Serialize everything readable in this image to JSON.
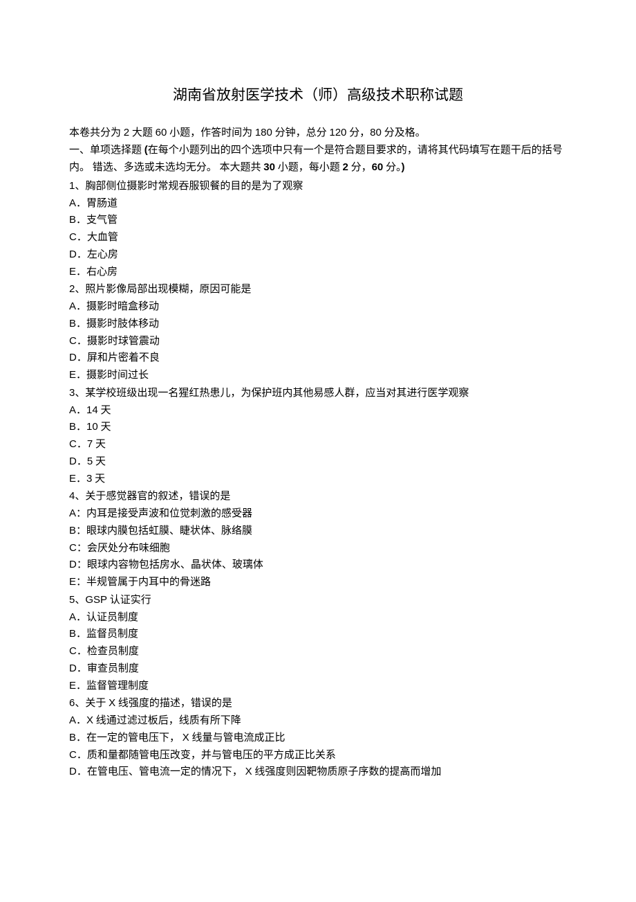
{
  "title": "湖南省放射医学技术（师）高级技术职称试题",
  "instructions": {
    "line1_parts": {
      "p1": "本卷共分为 ",
      "p2": "2",
      "p3": " 大题 ",
      "p4": "60",
      "p5": " 小题，作答时间为  ",
      "p6": "180",
      "p7": " 分钟，总分  ",
      "p8": "120",
      "p9": " 分，",
      "p10": "80",
      "p11": " 分及格。"
    },
    "line2_parts": {
      "p1": "一、单项选择题 ",
      "p2": "(",
      "p3": "在每个小题列出的四个选项中只有一个是符合题目要求的，请将其代码填写在题干后的括号内。  错选、多选或未选均无分。 本大题共  ",
      "p4": "30",
      "p5": " 小题，每小题 ",
      "p6": "2",
      "p7": " 分，",
      "p8": "60",
      "p9": " 分。",
      "p10": ")"
    }
  },
  "questions": [
    {
      "num": "1",
      "text": "、胸部侧位摄影时常规吞服钡餐的目的是为了观察",
      "options": [
        {
          "label": "A",
          "text": "．胃肠道"
        },
        {
          "label": "B",
          "text": "．支气管"
        },
        {
          "label": "C",
          "text": "．大血管"
        },
        {
          "label": "D",
          "text": "．左心房"
        },
        {
          "label": "E",
          "text": "．右心房"
        }
      ]
    },
    {
      "num": "2",
      "text": "、照片影像局部出现模糊，原因可能是",
      "options": [
        {
          "label": "A",
          "text": "．摄影时暗盒移动"
        },
        {
          "label": "B",
          "text": "．摄影时肢体移动"
        },
        {
          "label": "C",
          "text": "．摄影时球管震动"
        },
        {
          "label": "D",
          "text": "．屏和片密着不良"
        },
        {
          "label": "E",
          "text": "．摄影时间过长"
        }
      ]
    },
    {
      "num": "3",
      "text": "、某学校班级出现一名猩红热患儿，为保护班内其他易感人群，应当对其进行医学观察",
      "options": [
        {
          "label": "A",
          "text": "．",
          "after": "14",
          "suffix": " 天"
        },
        {
          "label": "B",
          "text": "．",
          "after": "10",
          "suffix": " 天"
        },
        {
          "label": "C",
          "text": "．",
          "after": "7",
          "suffix": " 天"
        },
        {
          "label": "D",
          "text": "．",
          "after": "5",
          "suffix": " 天"
        },
        {
          "label": "E",
          "text": "．",
          "after": "3",
          "suffix": " 天"
        }
      ]
    },
    {
      "num": "4",
      "text": "、关于感觉器官的叙述，错误的是",
      "options": [
        {
          "label": "A",
          "text": "：内耳是接受声波和位觉刺激的感受器"
        },
        {
          "label": "B",
          "text": "：眼球内膜包括虹膜、睫状体、脉络膜"
        },
        {
          "label": "C",
          "text": "：会厌处分布味细胞"
        },
        {
          "label": "D",
          "text": "：眼球内容物包括房水、晶状体、玻璃体"
        },
        {
          "label": "E",
          "text": "：半规管属于内耳中的骨迷路"
        }
      ]
    },
    {
      "num": "5",
      "text_pre": "、",
      "text_alpha": "GSP",
      "text_post": " 认证实行",
      "options": [
        {
          "label": "A",
          "text": "．认证员制度"
        },
        {
          "label": "B",
          "text": "．监督员制度"
        },
        {
          "label": "C",
          "text": "．检查员制度"
        },
        {
          "label": "D",
          "text": "．审查员制度"
        },
        {
          "label": "E",
          "text": "．监督管理制度"
        }
      ]
    },
    {
      "num": "6",
      "text_segments": [
        {
          "type": "cn",
          "v": "、关于 "
        },
        {
          "type": "en",
          "v": "X"
        },
        {
          "type": "cn",
          "v": " 线强度的描述，错误的是"
        }
      ],
      "options_complex": [
        {
          "segs": [
            {
              "type": "en",
              "v": "A"
            },
            {
              "type": "cn",
              "v": "．"
            },
            {
              "type": "en",
              "v": "X"
            },
            {
              "type": "cn",
              "v": " 线通过滤过板后，线质有所下降"
            }
          ]
        },
        {
          "segs": [
            {
              "type": "en",
              "v": "B"
            },
            {
              "type": "cn",
              "v": "．在一定的管电压下，  "
            },
            {
              "type": "en",
              "v": "X"
            },
            {
              "type": "cn",
              "v": " 线量与管电流成正比"
            }
          ]
        },
        {
          "segs": [
            {
              "type": "en",
              "v": "C"
            },
            {
              "type": "cn",
              "v": "．质和量都随管电压改变，并与管电压的平方成正比关系"
            }
          ]
        },
        {
          "segs": [
            {
              "type": "en",
              "v": "D"
            },
            {
              "type": "cn",
              "v": "．在管电压、管电流一定的情况下，   "
            },
            {
              "type": "en",
              "v": "X"
            },
            {
              "type": "cn",
              "v": " 线强度则因靶物质原子序数的提高而增加"
            }
          ]
        }
      ]
    }
  ]
}
